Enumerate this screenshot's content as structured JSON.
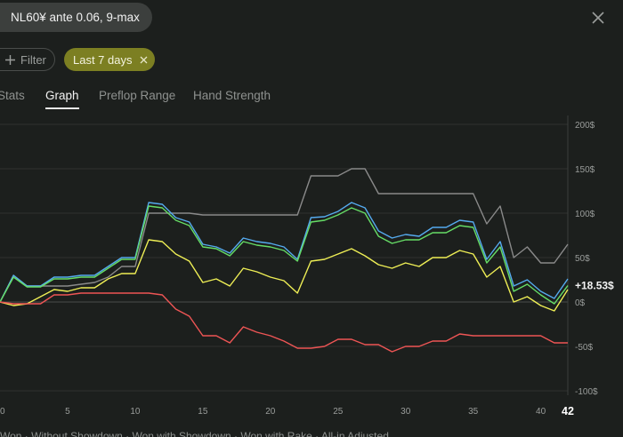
{
  "header": {
    "title": "NL60¥ ante 0.06, 9-max"
  },
  "filters": {
    "filter_label": "Filter",
    "date_range": "Last 7 days"
  },
  "tabs": [
    {
      "label": "Stats"
    },
    {
      "label": "Graph",
      "active": true
    },
    {
      "label": "Preflop Range"
    },
    {
      "label": "Hand Strength"
    }
  ],
  "colors": {
    "accent": "#7c7f22",
    "bg": "#1c1f1d"
  },
  "icons": {
    "close": "close-icon",
    "plus": "plus-icon",
    "clear": "close-small-icon"
  },
  "chart_data": {
    "type": "line",
    "x": [
      0,
      1,
      2,
      3,
      4,
      5,
      6,
      7,
      8,
      9,
      10,
      11,
      12,
      13,
      14,
      15,
      16,
      17,
      18,
      19,
      20,
      21,
      22,
      23,
      24,
      25,
      26,
      27,
      28,
      29,
      30,
      31,
      32,
      33,
      34,
      35,
      36,
      37,
      38,
      39,
      40,
      41,
      42
    ],
    "xticks": [
      0,
      5,
      10,
      15,
      20,
      25,
      30,
      35,
      40
    ],
    "xlast_label": "42",
    "yticks": [
      200,
      150,
      100,
      50,
      0,
      -50,
      -100
    ],
    "ytick_labels": [
      "200$",
      "150$",
      "100$",
      "50$",
      "0$",
      "-50$",
      "-100$"
    ],
    "ylim": [
      -100,
      200
    ],
    "xlim": [
      0,
      42
    ],
    "end_label": "+18.53$",
    "grid": true,
    "series": [
      {
        "color": "#8a8a8a",
        "values": [
          0,
          30,
          18,
          18,
          18,
          18,
          20,
          22,
          28,
          40,
          40,
          100,
          100,
          100,
          100,
          98,
          98,
          98,
          98,
          98,
          98,
          98,
          98,
          142,
          142,
          142,
          150,
          150,
          122,
          122,
          122,
          122,
          122,
          122,
          122,
          122,
          88,
          108,
          50,
          62,
          44,
          44,
          65
        ]
      },
      {
        "color": "#55aaee",
        "values": [
          0,
          30,
          18,
          18,
          28,
          28,
          30,
          30,
          40,
          50,
          50,
          112,
          110,
          95,
          90,
          65,
          62,
          55,
          72,
          68,
          66,
          62,
          48,
          95,
          96,
          102,
          112,
          106,
          80,
          72,
          76,
          74,
          84,
          84,
          92,
          90,
          48,
          68,
          18,
          25,
          12,
          4,
          26
        ]
      },
      {
        "color": "#66dd66",
        "values": [
          0,
          28,
          17,
          17,
          26,
          26,
          28,
          28,
          38,
          48,
          48,
          108,
          106,
          92,
          86,
          62,
          60,
          52,
          68,
          64,
          62,
          58,
          46,
          90,
          92,
          98,
          106,
          100,
          74,
          66,
          70,
          70,
          78,
          78,
          86,
          84,
          44,
          62,
          12,
          20,
          8,
          -2,
          18.53
        ]
      },
      {
        "color": "#eeee55",
        "values": [
          0,
          -4,
          -2,
          6,
          14,
          12,
          16,
          16,
          26,
          32,
          32,
          70,
          68,
          54,
          46,
          22,
          26,
          18,
          38,
          34,
          28,
          24,
          10,
          46,
          48,
          54,
          60,
          52,
          42,
          38,
          44,
          40,
          50,
          50,
          58,
          54,
          28,
          40,
          0,
          6,
          -4,
          -10,
          14
        ]
      },
      {
        "color": "#ee5555",
        "values": [
          0,
          -2,
          -2,
          -2,
          8,
          8,
          10,
          10,
          10,
          10,
          10,
          10,
          8,
          -8,
          -16,
          -38,
          -38,
          -46,
          -28,
          -34,
          -38,
          -44,
          -52,
          -52,
          -50,
          -42,
          -42,
          -48,
          -48,
          -56,
          -50,
          -50,
          -44,
          -44,
          -36,
          -38,
          -38,
          -38,
          -38,
          -38,
          -38,
          -46,
          -46
        ]
      }
    ]
  },
  "legend_strip_text": "Won  ·  Without Showdown  ·  Won with Showdown  ·  Won with Rake  ·  All-in Adjusted"
}
